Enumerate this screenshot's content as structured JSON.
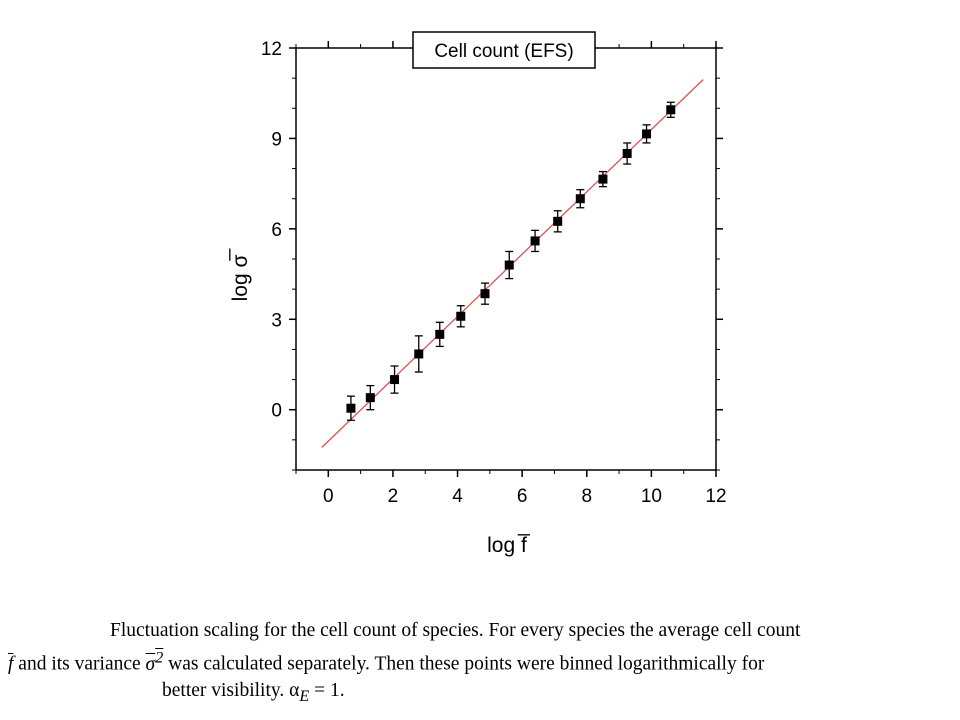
{
  "chart_data": {
    "type": "scatter",
    "title": "Cell count (EFS)",
    "xlabel": "log f̅",
    "ylabel": "log σ̅",
    "xlim": [
      -1,
      12
    ],
    "ylim": [
      -2,
      12
    ],
    "xticks": [
      0,
      2,
      4,
      6,
      8,
      10,
      12
    ],
    "yticks": [
      0,
      3,
      6,
      9,
      12
    ],
    "grid": false,
    "legend": "top-center",
    "points": [
      {
        "x": 0.7,
        "y": 0.05,
        "err": 0.4
      },
      {
        "x": 1.3,
        "y": 0.4,
        "err": 0.4
      },
      {
        "x": 2.05,
        "y": 1.0,
        "err": 0.45
      },
      {
        "x": 2.8,
        "y": 1.85,
        "err": 0.6
      },
      {
        "x": 3.45,
        "y": 2.5,
        "err": 0.4
      },
      {
        "x": 4.1,
        "y": 3.1,
        "err": 0.35
      },
      {
        "x": 4.85,
        "y": 3.85,
        "err": 0.35
      },
      {
        "x": 5.6,
        "y": 4.8,
        "err": 0.45
      },
      {
        "x": 6.4,
        "y": 5.6,
        "err": 0.35
      },
      {
        "x": 7.1,
        "y": 6.25,
        "err": 0.35
      },
      {
        "x": 7.8,
        "y": 7.0,
        "err": 0.3
      },
      {
        "x": 8.5,
        "y": 7.65,
        "err": 0.25
      },
      {
        "x": 9.25,
        "y": 8.5,
        "err": 0.35
      },
      {
        "x": 9.85,
        "y": 9.15,
        "err": 0.3
      },
      {
        "x": 10.6,
        "y": 9.95,
        "err": 0.25
      }
    ],
    "fit_line": {
      "x": [
        -0.2,
        11.6
      ],
      "y": [
        -1.25,
        10.95
      ],
      "color": "#e05050"
    }
  },
  "colors": {
    "marker": "#000000",
    "fit": "#e05050"
  },
  "caption": {
    "line1": "Fluctuation scaling for the cell count of species. For every species the average cell count",
    "line2_f": "f",
    "line2_a": " and its variance ",
    "line2_sigma": "σ",
    "line2_b": " was calculated separately. Then these points were binned logarithmically for",
    "line3_a": "better visibility. α",
    "line3_sub": "E",
    "line3_b": " = 1."
  }
}
